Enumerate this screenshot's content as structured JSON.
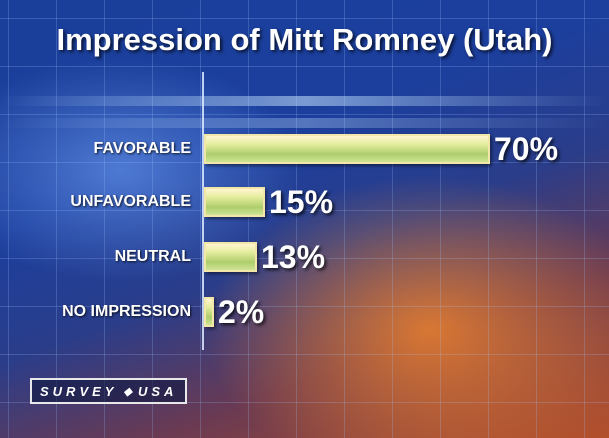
{
  "chart_data": {
    "type": "bar",
    "orientation": "horizontal",
    "title": "Impression of Mitt Romney (Utah)",
    "categories": [
      "FAVORABLE",
      "UNFAVORABLE",
      "NEUTRAL",
      "NO IMPRESSION"
    ],
    "values": [
      70,
      15,
      13,
      2
    ],
    "value_labels": [
      "70%",
      "15%",
      "13%",
      "2%"
    ],
    "xlim": [
      0,
      100
    ],
    "grid": true,
    "bar_color": "#c8df88"
  },
  "branding": {
    "left": "SURVEY",
    "right": "USA",
    "separator_icon": "diamond-icon"
  }
}
